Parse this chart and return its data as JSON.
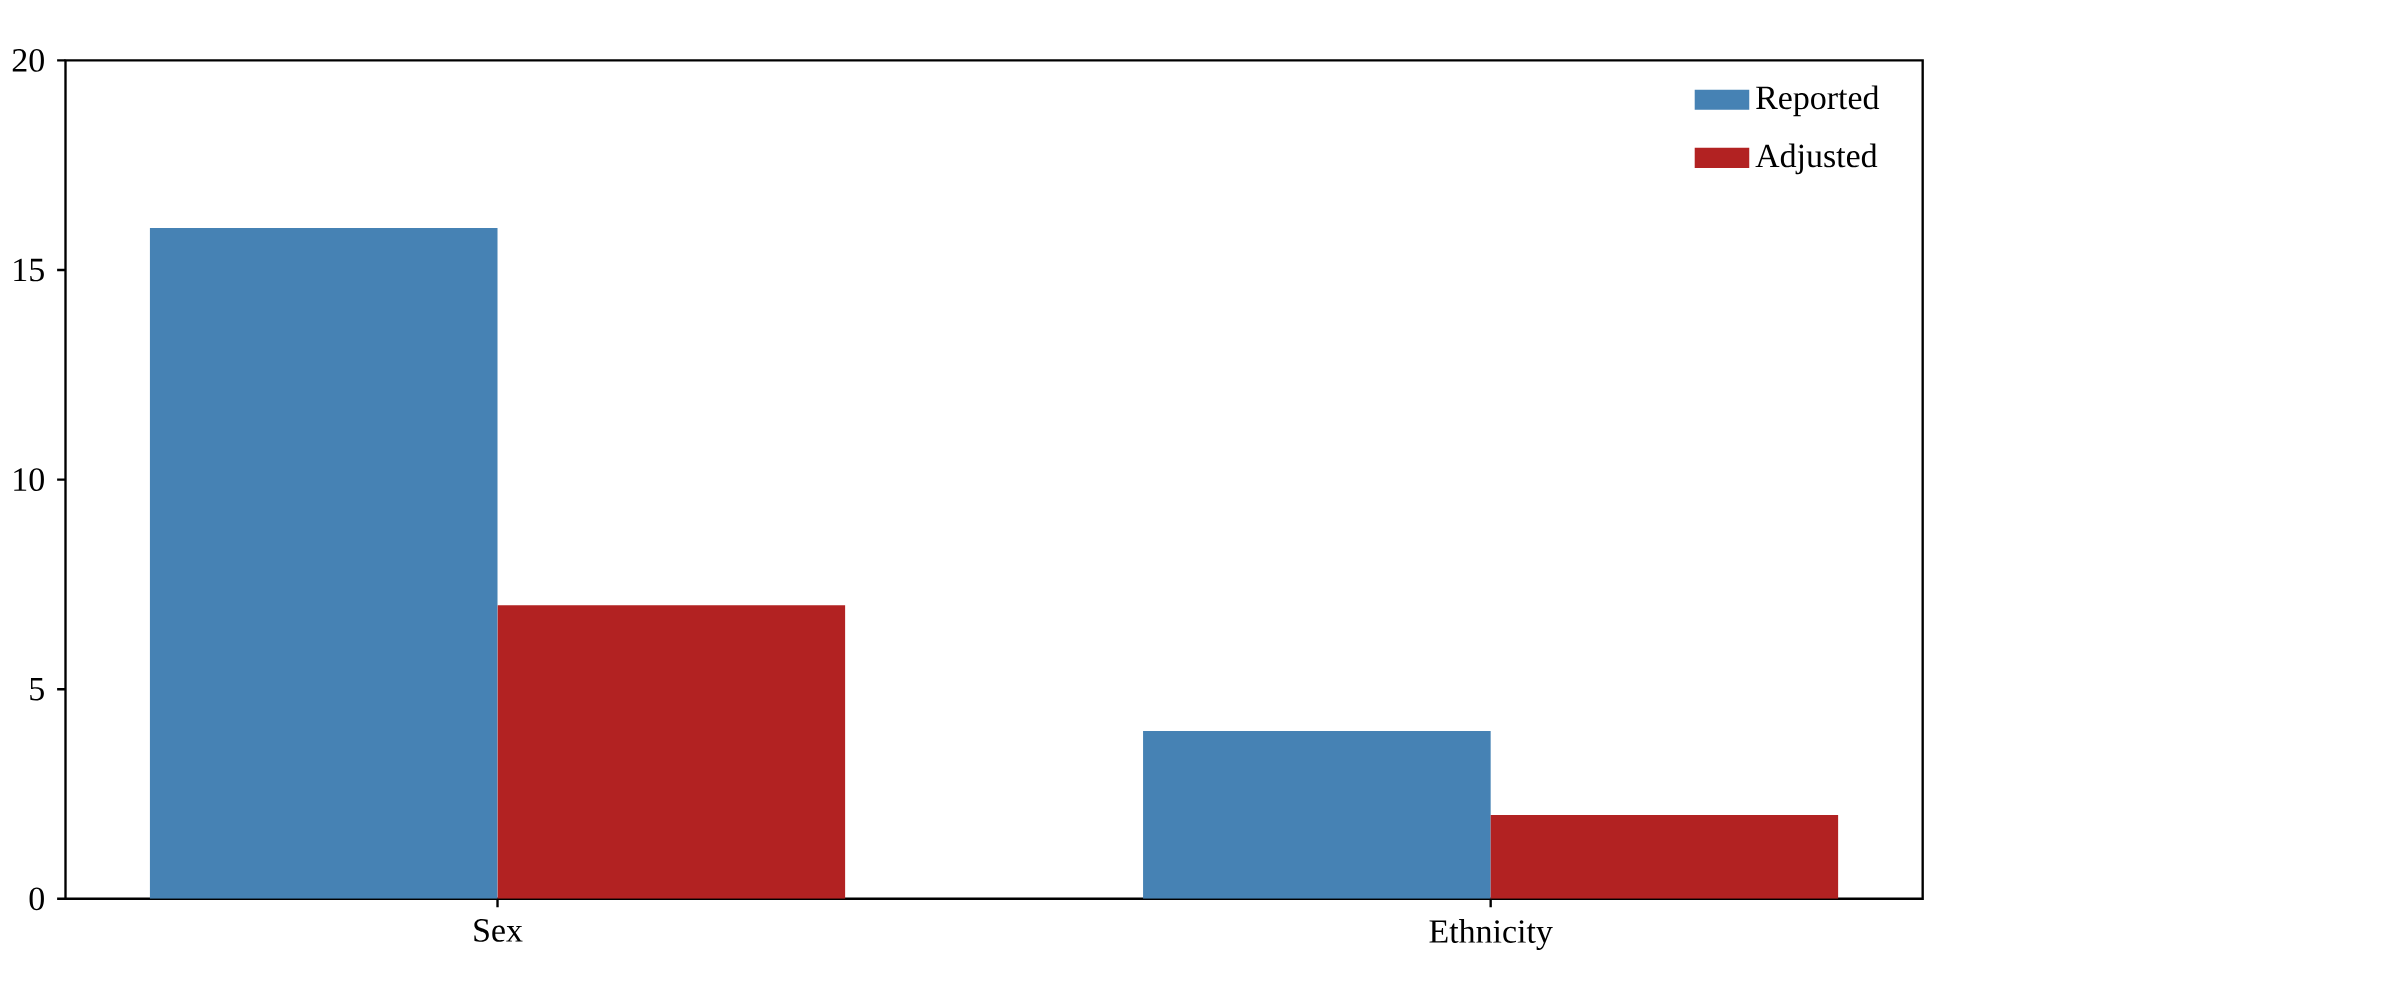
{
  "chart_data": {
    "type": "bar",
    "categories": [
      "Sex",
      "Ethnicity"
    ],
    "series": [
      {
        "name": "Reported",
        "color": "#4682b4",
        "values": [
          16,
          4
        ]
      },
      {
        "name": "Adjusted",
        "color": "#b22222",
        "values": [
          7,
          2
        ]
      }
    ],
    "ylim": [
      0,
      20
    ],
    "yticks": [
      0,
      5,
      10,
      15,
      20
    ],
    "legend": "top right"
  }
}
